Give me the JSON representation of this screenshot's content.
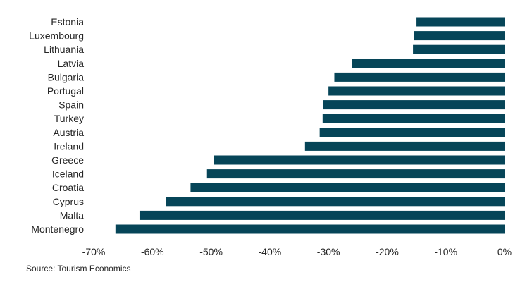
{
  "chart_data": {
    "type": "bar",
    "orientation": "horizontal",
    "categories": [
      "Estonia",
      "Luxembourg",
      "Lithuania",
      "Latvia",
      "Bulgaria",
      "Portugal",
      "Spain",
      "Turkey",
      "Austria",
      "Ireland",
      "Greece",
      "Iceland",
      "Croatia",
      "Cyprus",
      "Malta",
      "Montenegro"
    ],
    "values": [
      -15,
      -15.4,
      -15.6,
      -26,
      -29,
      -30,
      -30.9,
      -31,
      -31.5,
      -34,
      -49.5,
      -50.7,
      -53.5,
      -57.7,
      -62.2,
      -66.3
    ],
    "xlim": [
      -70,
      0
    ],
    "xticks": [
      -70,
      -60,
      -50,
      -40,
      -30,
      -20,
      -10,
      0
    ],
    "xtick_labels": [
      "-70%",
      "-60%",
      "-50%",
      "-40%",
      "-30%",
      "-20%",
      "-10%",
      "0%"
    ],
    "title": "",
    "xlabel": "",
    "ylabel": "",
    "grid": false,
    "legend": "none",
    "bar_color": "#064558"
  },
  "source": "Source: Tourism Economics"
}
